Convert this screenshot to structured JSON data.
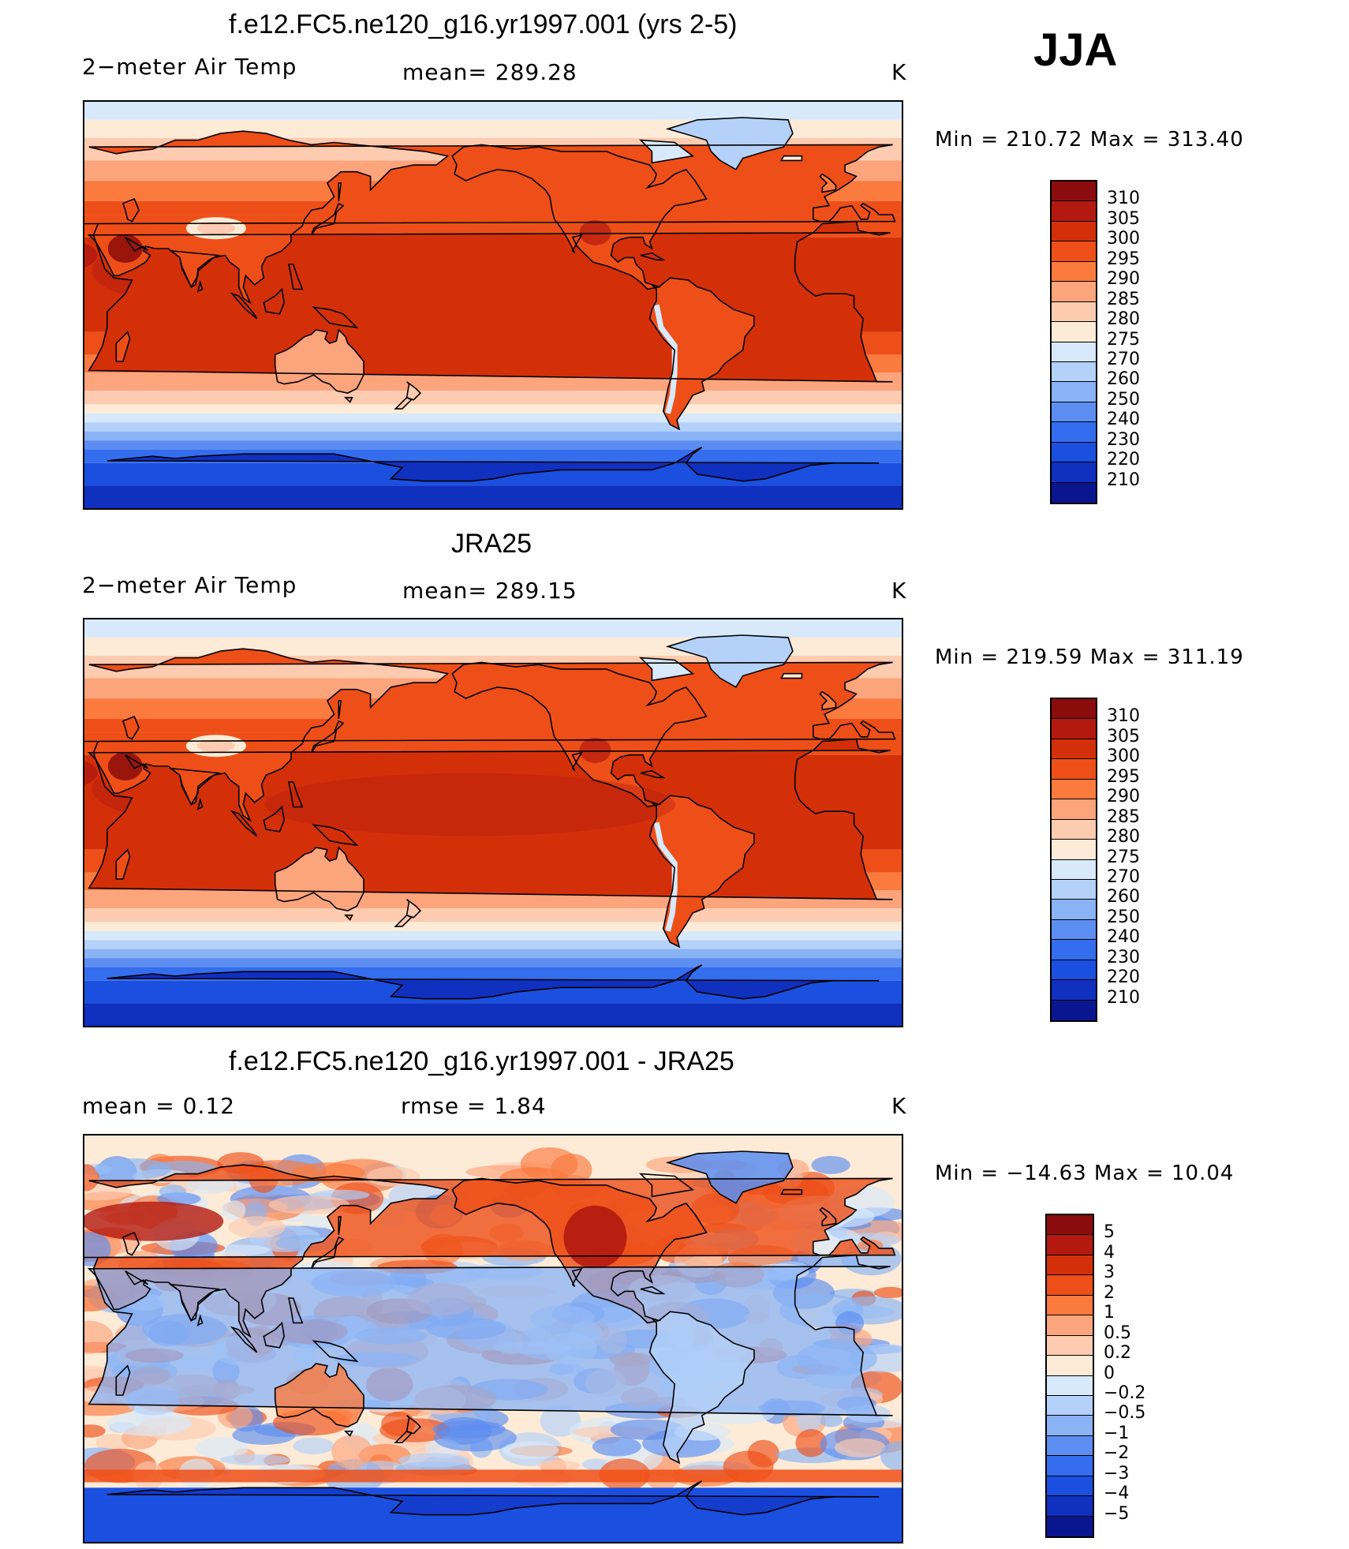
{
  "season": "JJA",
  "panels": [
    {
      "id": "model",
      "title": "f.e12.FC5.ne120_g16.yr1997.001 (yrs 2-5)",
      "left_label": "2−meter Air Temp",
      "center_label": "mean=  289.28",
      "units": "K",
      "minmax": "Min  =  210.72  Max  =  313.40",
      "map_type": "absolute"
    },
    {
      "id": "obs",
      "title": "JRA25",
      "left_label": "2−meter Air Temp",
      "center_label": "mean=  289.15",
      "units": "K",
      "minmax": "Min  =  219.59  Max  =  311.19",
      "map_type": "absolute"
    },
    {
      "id": "diff",
      "title": "f.e12.FC5.ne120_g16.yr1997.001 - JRA25",
      "left_label": "mean  =     0.12",
      "center_label": "rmse  =     1.84",
      "units": "K",
      "minmax": "Min  =  −14.63  Max  =     10.04",
      "map_type": "difference"
    }
  ],
  "colorbars": {
    "absolute": {
      "labels": [
        "310",
        "305",
        "300",
        "295",
        "290",
        "285",
        "280",
        "275",
        "270",
        "260",
        "250",
        "240",
        "230",
        "220",
        "210"
      ],
      "colors": [
        "#8b0c0c",
        "#b3190f",
        "#d3300a",
        "#ee4f18",
        "#fb7a3e",
        "#fca47c",
        "#fdcbb0",
        "#fdebd7",
        "#d7e9fb",
        "#b4d1fa",
        "#89b3f5",
        "#5c8ef1",
        "#346ded",
        "#1b4fe0",
        "#1030c0",
        "#0a168f"
      ]
    },
    "difference": {
      "labels": [
        "5",
        "4",
        "3",
        "2",
        "1",
        "0.5",
        "0.2",
        "0",
        "−0.2",
        "−0.5",
        "−1",
        "−2",
        "−3",
        "−4",
        "−5"
      ],
      "colors": [
        "#8b0c0c",
        "#b3190f",
        "#d3300a",
        "#ee4f18",
        "#fb7a3e",
        "#fca47c",
        "#fdcbb0",
        "#fdebd7",
        "#d7e9fb",
        "#b4d1fa",
        "#89b3f5",
        "#5c8ef1",
        "#346ded",
        "#1b4fe0",
        "#1030c0",
        "#0a168f"
      ]
    }
  }
}
